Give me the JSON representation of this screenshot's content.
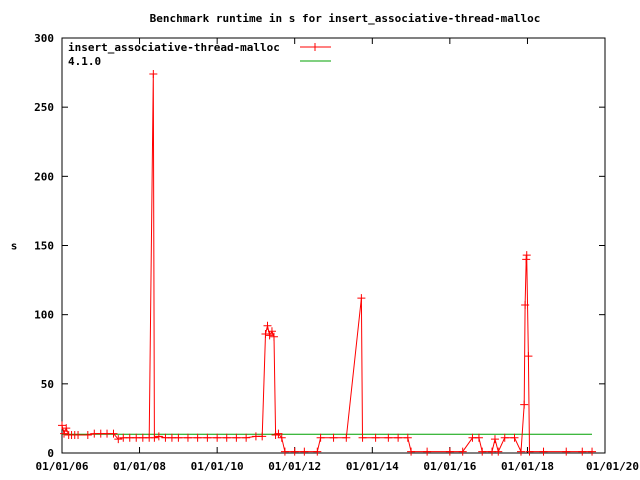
{
  "chart_data": {
    "type": "line",
    "title": "Benchmark runtime in s for insert_associative-thread-malloc",
    "xlabel": "",
    "ylabel": "s",
    "xlim": [
      "2006-01-01",
      "2020-01-01"
    ],
    "ylim": [
      0,
      300
    ],
    "x_ticks": [
      "01/01/06",
      "01/01/08",
      "01/01/10",
      "01/01/12",
      "01/01/14",
      "01/01/16",
      "01/01/18",
      "01/01/20"
    ],
    "y_ticks": [
      "0",
      "50",
      "100",
      "150",
      "200",
      "250",
      "300"
    ],
    "legend_position": "top-left",
    "grid": false,
    "series": [
      {
        "name": "insert_associative-thread-malloc",
        "color": "#ff0000",
        "marker": "plus",
        "points": [
          [
            "2006-01-01",
            20
          ],
          [
            "2006-01-20",
            14
          ],
          [
            "2006-02-10",
            18
          ],
          [
            "2006-03-05",
            13
          ],
          [
            "2006-04-01",
            13
          ],
          [
            "2006-05-01",
            13
          ],
          [
            "2006-06-01",
            13
          ],
          [
            "2006-09-01",
            13
          ],
          [
            "2006-11-01",
            14
          ],
          [
            "2007-01-01",
            14
          ],
          [
            "2007-03-01",
            14
          ],
          [
            "2007-05-01",
            14
          ],
          [
            "2007-06-15",
            10
          ],
          [
            "2007-08-01",
            11
          ],
          [
            "2007-10-01",
            11
          ],
          [
            "2007-12-01",
            11
          ],
          [
            "2008-02-01",
            11
          ],
          [
            "2008-04-01",
            11
          ],
          [
            "2008-05-10",
            274
          ],
          [
            "2008-05-20",
            11
          ],
          [
            "2008-07-01",
            12
          ],
          [
            "2008-09-01",
            11
          ],
          [
            "2008-11-01",
            11
          ],
          [
            "2009-01-01",
            11
          ],
          [
            "2009-04-01",
            11
          ],
          [
            "2009-07-01",
            11
          ],
          [
            "2009-10-01",
            11
          ],
          [
            "2010-01-01",
            11
          ],
          [
            "2010-04-01",
            11
          ],
          [
            "2010-07-01",
            11
          ],
          [
            "2010-10-01",
            11
          ],
          [
            "2011-01-01",
            12
          ],
          [
            "2011-03-01",
            12
          ],
          [
            "2011-04-01",
            86
          ],
          [
            "2011-04-20",
            92
          ],
          [
            "2011-05-10",
            85
          ],
          [
            "2011-06-01",
            88
          ],
          [
            "2011-06-20",
            84
          ],
          [
            "2011-07-05",
            13
          ],
          [
            "2011-08-01",
            14
          ],
          [
            "2011-09-01",
            11
          ],
          [
            "2011-10-01",
            1
          ],
          [
            "2012-01-01",
            1
          ],
          [
            "2012-04-01",
            1
          ],
          [
            "2012-08-01",
            1
          ],
          [
            "2012-09-01",
            11
          ],
          [
            "2013-01-01",
            11
          ],
          [
            "2013-05-01",
            11
          ],
          [
            "2013-09-20",
            112
          ],
          [
            "2013-10-01",
            11
          ],
          [
            "2014-02-01",
            11
          ],
          [
            "2014-06-01",
            11
          ],
          [
            "2014-09-01",
            11
          ],
          [
            "2014-12-01",
            11
          ],
          [
            "2015-01-01",
            1
          ],
          [
            "2015-06-01",
            1
          ],
          [
            "2016-01-01",
            1
          ],
          [
            "2016-05-01",
            1
          ],
          [
            "2016-08-01",
            11
          ],
          [
            "2016-10-01",
            11
          ],
          [
            "2016-11-01",
            1
          ],
          [
            "2017-02-01",
            1
          ],
          [
            "2017-03-01",
            10
          ],
          [
            "2017-04-01",
            1
          ],
          [
            "2017-06-01",
            11
          ],
          [
            "2017-09-01",
            11
          ],
          [
            "2017-11-01",
            1
          ],
          [
            "2017-12-01",
            35
          ],
          [
            "2017-12-10",
            107
          ],
          [
            "2017-12-20",
            140
          ],
          [
            "2017-12-25",
            143
          ],
          [
            "2018-01-10",
            70
          ],
          [
            "2018-01-20",
            1
          ],
          [
            "2018-06-01",
            1
          ],
          [
            "2019-01-01",
            1
          ],
          [
            "2019-06-01",
            1
          ],
          [
            "2019-09-01",
            1
          ]
        ]
      },
      {
        "name": "4.1.0",
        "color": "#00a000",
        "marker": "none",
        "points": [
          [
            "2006-01-01",
            13.5
          ],
          [
            "2019-09-01",
            13.5
          ]
        ]
      }
    ]
  }
}
